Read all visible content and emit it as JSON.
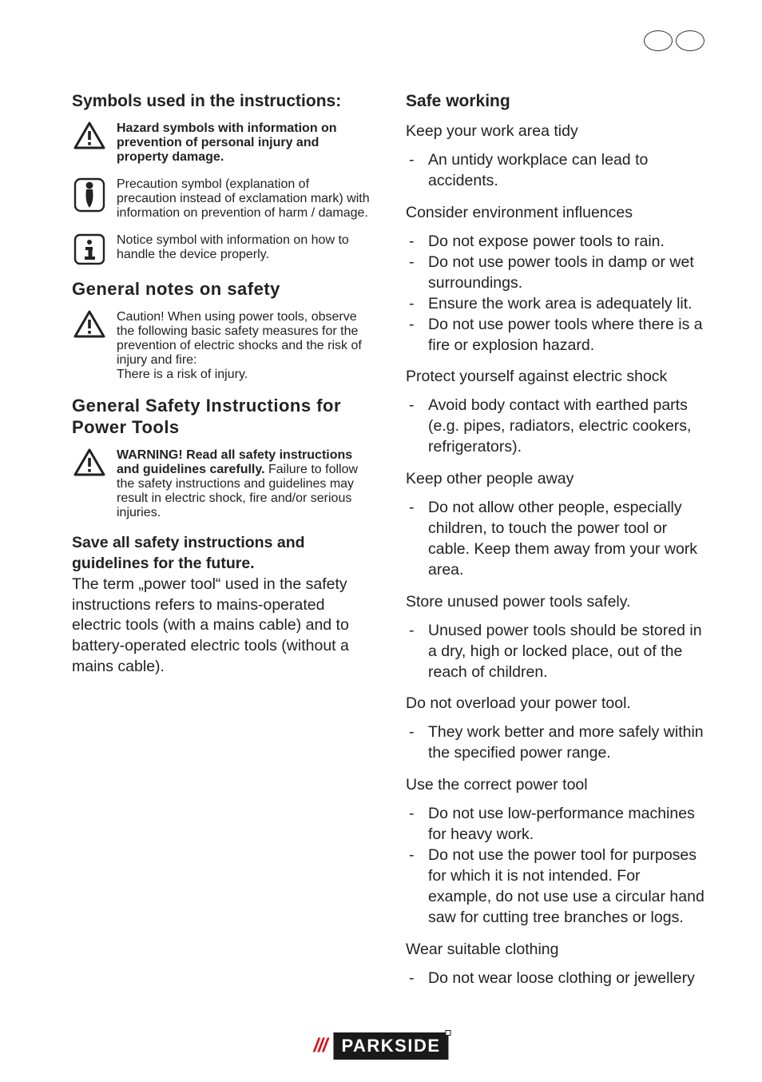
{
  "left": {
    "symbols_heading": "Symbols used in the instructions:",
    "hazard_block": "Hazard symbols with information on prevention of personal injury and property damage.",
    "precaution_block": "Precaution symbol (explanation of precaution instead of exclamation mark) with information on prevention of harm / damage.",
    "notice_block": "Notice symbol with information on how to handle the device properly.",
    "general_notes_heading": "General notes on safety",
    "caution_intro": "Caution! When using power tools, observe the following basic safety measures for the prevention of electric shocks and the risk of injury and fire:",
    "caution_tail": "There is a risk of injury.",
    "gsi_heading": "General Safety Instructions for Power Tools",
    "warning_lead_bold": "WARNING! Read all safety instructions and guidelines carefully.",
    "warning_lead_rest": " Failure to follow the safety instructions and guidelines may result in electric shock, fire and/or serious injuries.",
    "save_heading": "Save all safety instructions and guidelines for the future.",
    "save_body": "The term „power tool“ used in the safety instructions refers to mains-operated electric tools (with a mains cable) and to battery-operated electric tools (without a mains cable)."
  },
  "right": {
    "safe_heading": "Safe working",
    "tidy_intro": "Keep your work area tidy",
    "tidy_items": [
      "An untidy workplace can lead to accidents."
    ],
    "env_intro": "Consider environment influences",
    "env_items": [
      "Do not expose power tools to rain.",
      "Do not use power tools in damp or wet surroundings.",
      "Ensure the work area is adequately lit.",
      "Do not use power tools where there is a fire or explosion hazard."
    ],
    "shock_intro": "Protect yourself against electric shock",
    "shock_items": [
      "Avoid body contact with earthed parts (e.g. pipes, radiators, electric cookers, refrigerators)."
    ],
    "people_intro": "Keep other people away",
    "people_items": [
      "Do not allow other people, especially children, to touch the power tool or cable. Keep them away from your work area."
    ],
    "store_intro": "Store unused power tools safely.",
    "store_items": [
      "Unused power tools should be stored in a dry, high or locked place, out of the reach of children."
    ],
    "overload_intro": "Do not overload your power tool.",
    "overload_items": [
      "They work better and more safely within the specified power range."
    ],
    "correct_intro": "Use the correct power tool",
    "correct_items": [
      "Do not use low-performance machines for heavy work.",
      "Do not use the power tool for purposes for which it is not intended. For example, do not use use a circular hand saw for cutting tree branches or logs."
    ],
    "cloth_intro": "Wear suitable clothing",
    "cloth_items": [
      "Do not wear loose clothing or jewellery"
    ]
  },
  "footer": {
    "brand": "PARKSIDE"
  }
}
